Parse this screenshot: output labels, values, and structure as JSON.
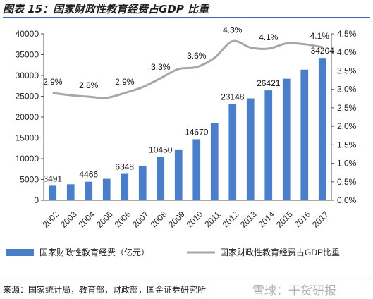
{
  "title": "图表 15：国家财政性教育经费占GDP 比重",
  "source": "来源：国家统计局，教育部，财政部，国金证券研究所",
  "watermark": "雪球：干货研报",
  "chart_data": {
    "type": "bar+line",
    "categories": [
      "2002",
      "2003",
      "2004",
      "2005",
      "2006",
      "2007",
      "2008",
      "2009",
      "2010",
      "2011",
      "2012",
      "2013",
      "2014",
      "2015",
      "2016",
      "2017"
    ],
    "series": [
      {
        "name": "国家财政性教育经费（亿元）",
        "type": "bar",
        "axis": "left",
        "color": "#4a7ec9",
        "values": [
          3491,
          3850,
          4466,
          5161,
          6348,
          8280,
          10450,
          12231,
          14670,
          18587,
          23148,
          24488,
          26421,
          29221,
          31396,
          34204
        ]
      },
      {
        "name": "国家财政性教育经费占GDP比重",
        "type": "line",
        "axis": "right",
        "color": "#a6a6a6",
        "values": [
          2.9,
          2.84,
          2.8,
          2.77,
          2.9,
          3.06,
          3.3,
          3.55,
          3.6,
          3.85,
          4.3,
          4.13,
          4.1,
          4.24,
          4.22,
          4.14
        ]
      }
    ],
    "bar_labels": [
      {
        "index": 0,
        "text": "3491"
      },
      {
        "index": 2,
        "text": "4466"
      },
      {
        "index": 4,
        "text": "6348"
      },
      {
        "index": 6,
        "text": "10450"
      },
      {
        "index": 8,
        "text": "14670"
      },
      {
        "index": 10,
        "text": "23148"
      },
      {
        "index": 12,
        "text": "26421"
      },
      {
        "index": 15,
        "text": "34204"
      }
    ],
    "line_labels": [
      {
        "index": 0,
        "text": "2.9%"
      },
      {
        "index": 2,
        "text": "2.8%"
      },
      {
        "index": 4,
        "text": "2.9%"
      },
      {
        "index": 6,
        "text": "3.3%"
      },
      {
        "index": 8,
        "text": "3.6%"
      },
      {
        "index": 10,
        "text": "4.3%"
      },
      {
        "index": 12,
        "text": "4.1%"
      },
      {
        "index": 15,
        "text": "4.1%"
      }
    ],
    "left_axis": {
      "min": 0,
      "max": 40000,
      "ticks": [
        "0",
        "5000",
        "10000",
        "15000",
        "20000",
        "25000",
        "30000",
        "35000",
        "40000"
      ]
    },
    "right_axis": {
      "min": 0,
      "max": 4.5,
      "ticks": [
        "0.0%",
        "0.5%",
        "1.0%",
        "1.5%",
        "2.0%",
        "2.5%",
        "3.0%",
        "3.5%",
        "4.0%",
        "4.5%"
      ]
    },
    "grid": false,
    "legend_position": "bottom"
  }
}
